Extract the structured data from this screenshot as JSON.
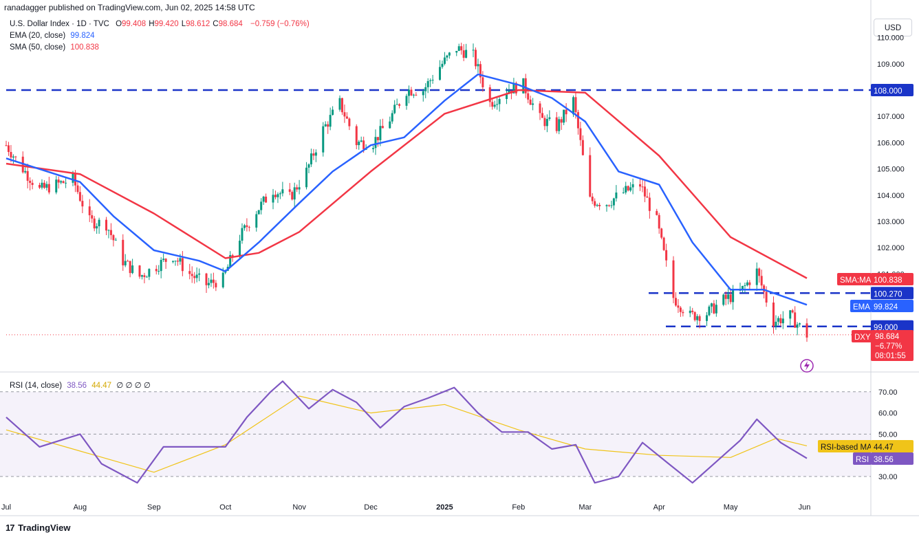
{
  "header": {
    "text": "ranadagger published on TradingView.com, Jun 02, 2025 14:58 UTC"
  },
  "main_legend": {
    "title": "U.S. Dollar Index · 1D · TVC",
    "ohlc": [
      {
        "k": "O",
        "v": "99.408"
      },
      {
        "k": "H",
        "v": "99.420"
      },
      {
        "k": "L",
        "v": "98.612"
      },
      {
        "k": "C",
        "v": "98.684"
      }
    ],
    "change": "−0.759 (−0.76%)",
    "ema_label": "EMA (20, close)",
    "ema_value": "99.824",
    "sma_label": "SMA (50, close)",
    "sma_value": "100.838"
  },
  "currency_button": "USD",
  "rsi_legend": {
    "label": "RSI (14, close)",
    "rsi": "38.56",
    "ma": "44.47",
    "extra": "∅ ∅ ∅ ∅"
  },
  "badges": {
    "sma_tag": "SMA:MA",
    "sma_val": "100.838",
    "ema_tag": "EMA",
    "ema_val": "99.824",
    "dxy_tag": "DXY",
    "dxy_val": "98.684",
    "dxy_chg": "−6.77%",
    "dxy_time": "08:01:55",
    "line_108": "108.000",
    "line_10027": "100.270",
    "line_99": "99.000",
    "rsi_ma_tag": "RSI-based MA",
    "rsi_ma_val": "44.47",
    "rsi_tag": "RSI",
    "rsi_val": "38.56"
  },
  "footer": {
    "logo": "TradingView"
  },
  "colors": {
    "ema": "#2962ff",
    "sma": "#f23645",
    "rsi": "#7e57c2",
    "rsi_ma": "#f0c419",
    "up": "#089981",
    "down": "#f23645",
    "hline": "#1a34c8"
  },
  "chart_data": {
    "type": "candlestick",
    "price_axis_ticks": [
      "101.000",
      "102.000",
      "103.000",
      "104.000",
      "105.000",
      "106.000",
      "107.000",
      "108.000",
      "109.000",
      "110.000"
    ],
    "rsi_axis_ticks": [
      "30.00",
      "40.00",
      "50.00",
      "60.00",
      "70.00"
    ],
    "time_labels": [
      "Jul",
      "Aug",
      "Sep",
      "Oct",
      "Nov",
      "Dec",
      "2025",
      "Feb",
      "Mar",
      "Apr",
      "May",
      "Jun"
    ],
    "horizontal_levels": [
      108.0,
      100.27,
      99.0
    ],
    "close_series": [
      {
        "t": "2024-07-01",
        "c": 105.9
      },
      {
        "t": "2024-07-08",
        "c": 105.0
      },
      {
        "t": "2024-07-15",
        "c": 104.2
      },
      {
        "t": "2024-07-22",
        "c": 104.4
      },
      {
        "t": "2024-07-29",
        "c": 104.6
      },
      {
        "t": "2024-08-05",
        "c": 103.0
      },
      {
        "t": "2024-08-12",
        "c": 102.9
      },
      {
        "t": "2024-08-19",
        "c": 101.5
      },
      {
        "t": "2024-08-26",
        "c": 100.9
      },
      {
        "t": "2024-09-02",
        "c": 101.3
      },
      {
        "t": "2024-09-09",
        "c": 101.7
      },
      {
        "t": "2024-09-16",
        "c": 101.0
      },
      {
        "t": "2024-09-23",
        "c": 100.6
      },
      {
        "t": "2024-09-30",
        "c": 100.8
      },
      {
        "t": "2024-10-07",
        "c": 102.4
      },
      {
        "t": "2024-10-14",
        "c": 103.4
      },
      {
        "t": "2024-10-21",
        "c": 104.2
      },
      {
        "t": "2024-10-28",
        "c": 103.9
      },
      {
        "t": "2024-11-04",
        "c": 104.9
      },
      {
        "t": "2024-11-11",
        "c": 106.5
      },
      {
        "t": "2024-11-18",
        "c": 107.5
      },
      {
        "t": "2024-11-25",
        "c": 106.0
      },
      {
        "t": "2024-12-02",
        "c": 106.0
      },
      {
        "t": "2024-12-09",
        "c": 106.9
      },
      {
        "t": "2024-12-16",
        "c": 108.0
      },
      {
        "t": "2024-12-23",
        "c": 108.0
      },
      {
        "t": "2024-12-30",
        "c": 108.9
      },
      {
        "t": "2025-01-06",
        "c": 109.6
      },
      {
        "t": "2025-01-13",
        "c": 109.3
      },
      {
        "t": "2025-01-20",
        "c": 107.5
      },
      {
        "t": "2025-01-27",
        "c": 108.0
      },
      {
        "t": "2025-02-03",
        "c": 108.2
      },
      {
        "t": "2025-02-10",
        "c": 106.9
      },
      {
        "t": "2025-02-17",
        "c": 106.6
      },
      {
        "t": "2025-02-24",
        "c": 107.6
      },
      {
        "t": "2025-03-03",
        "c": 103.8
      },
      {
        "t": "2025-03-10",
        "c": 103.7
      },
      {
        "t": "2025-03-17",
        "c": 104.1
      },
      {
        "t": "2025-03-24",
        "c": 104.4
      },
      {
        "t": "2025-03-31",
        "c": 103.0
      },
      {
        "t": "2025-04-07",
        "c": 100.1
      },
      {
        "t": "2025-04-14",
        "c": 99.4
      },
      {
        "t": "2025-04-21",
        "c": 99.5
      },
      {
        "t": "2025-04-28",
        "c": 100.0
      },
      {
        "t": "2025-05-05",
        "c": 100.3
      },
      {
        "t": "2025-05-12",
        "c": 101.1
      },
      {
        "t": "2025-05-19",
        "c": 99.2
      },
      {
        "t": "2025-05-26",
        "c": 99.4
      },
      {
        "t": "2025-06-02",
        "c": 98.684
      }
    ],
    "ema20": [
      {
        "t": "2024-07-01",
        "v": 105.4
      },
      {
        "t": "2024-08-01",
        "v": 104.5
      },
      {
        "t": "2024-08-15",
        "v": 103.2
      },
      {
        "t": "2024-09-01",
        "v": 101.9
      },
      {
        "t": "2024-09-20",
        "v": 101.5
      },
      {
        "t": "2024-10-01",
        "v": 101.1
      },
      {
        "t": "2024-10-15",
        "v": 102.2
      },
      {
        "t": "2024-11-01",
        "v": 103.7
      },
      {
        "t": "2024-11-15",
        "v": 104.9
      },
      {
        "t": "2024-12-01",
        "v": 105.9
      },
      {
        "t": "2024-12-15",
        "v": 106.2
      },
      {
        "t": "2025-01-01",
        "v": 107.6
      },
      {
        "t": "2025-01-15",
        "v": 108.6
      },
      {
        "t": "2025-02-01",
        "v": 108.2
      },
      {
        "t": "2025-02-15",
        "v": 107.7
      },
      {
        "t": "2025-03-01",
        "v": 106.8
      },
      {
        "t": "2025-03-15",
        "v": 104.9
      },
      {
        "t": "2025-04-01",
        "v": 104.4
      },
      {
        "t": "2025-04-15",
        "v": 102.2
      },
      {
        "t": "2025-05-01",
        "v": 100.4
      },
      {
        "t": "2025-05-15",
        "v": 100.4
      },
      {
        "t": "2025-06-02",
        "v": 99.824
      }
    ],
    "sma50": [
      {
        "t": "2024-07-01",
        "v": 105.2
      },
      {
        "t": "2024-08-01",
        "v": 104.8
      },
      {
        "t": "2024-09-01",
        "v": 103.3
      },
      {
        "t": "2024-10-01",
        "v": 101.6
      },
      {
        "t": "2024-10-15",
        "v": 101.8
      },
      {
        "t": "2024-11-01",
        "v": 102.6
      },
      {
        "t": "2024-12-01",
        "v": 104.9
      },
      {
        "t": "2025-01-01",
        "v": 107.1
      },
      {
        "t": "2025-02-01",
        "v": 108.0
      },
      {
        "t": "2025-03-01",
        "v": 107.9
      },
      {
        "t": "2025-04-01",
        "v": 105.5
      },
      {
        "t": "2025-05-01",
        "v": 102.4
      },
      {
        "t": "2025-06-02",
        "v": 100.838
      }
    ],
    "rsi14": [
      {
        "t": "2024-07-01",
        "v": 58
      },
      {
        "t": "2024-07-15",
        "v": 44
      },
      {
        "t": "2024-08-01",
        "v": 50
      },
      {
        "t": "2024-08-10",
        "v": 36
      },
      {
        "t": "2024-08-25",
        "v": 27
      },
      {
        "t": "2024-09-05",
        "v": 44
      },
      {
        "t": "2024-09-15",
        "v": 44
      },
      {
        "t": "2024-10-01",
        "v": 44
      },
      {
        "t": "2024-10-10",
        "v": 58
      },
      {
        "t": "2024-10-20",
        "v": 70
      },
      {
        "t": "2024-10-25",
        "v": 75
      },
      {
        "t": "2024-11-05",
        "v": 62
      },
      {
        "t": "2024-11-15",
        "v": 71
      },
      {
        "t": "2024-11-25",
        "v": 65
      },
      {
        "t": "2024-12-05",
        "v": 53
      },
      {
        "t": "2024-12-15",
        "v": 63
      },
      {
        "t": "2024-12-25",
        "v": 67
      },
      {
        "t": "2025-01-05",
        "v": 72
      },
      {
        "t": "2025-01-15",
        "v": 60
      },
      {
        "t": "2025-01-25",
        "v": 51
      },
      {
        "t": "2025-02-05",
        "v": 51
      },
      {
        "t": "2025-02-15",
        "v": 43
      },
      {
        "t": "2025-02-25",
        "v": 45
      },
      {
        "t": "2025-03-05",
        "v": 27
      },
      {
        "t": "2025-03-15",
        "v": 30
      },
      {
        "t": "2025-03-25",
        "v": 46
      },
      {
        "t": "2025-04-05",
        "v": 36
      },
      {
        "t": "2025-04-15",
        "v": 27
      },
      {
        "t": "2025-04-22",
        "v": 34
      },
      {
        "t": "2025-05-05",
        "v": 47
      },
      {
        "t": "2025-05-12",
        "v": 57
      },
      {
        "t": "2025-05-22",
        "v": 46
      },
      {
        "t": "2025-06-02",
        "v": 38.56
      }
    ],
    "rsi_ma": [
      {
        "t": "2024-07-01",
        "v": 52
      },
      {
        "t": "2024-08-01",
        "v": 42
      },
      {
        "t": "2024-09-01",
        "v": 32
      },
      {
        "t": "2024-10-01",
        "v": 45
      },
      {
        "t": "2024-11-01",
        "v": 68
      },
      {
        "t": "2024-12-01",
        "v": 60
      },
      {
        "t": "2025-01-01",
        "v": 64
      },
      {
        "t": "2025-02-01",
        "v": 52
      },
      {
        "t": "2025-03-01",
        "v": 43
      },
      {
        "t": "2025-04-01",
        "v": 40
      },
      {
        "t": "2025-05-01",
        "v": 39
      },
      {
        "t": "2025-05-20",
        "v": 48
      },
      {
        "t": "2025-06-02",
        "v": 44.47
      }
    ]
  }
}
